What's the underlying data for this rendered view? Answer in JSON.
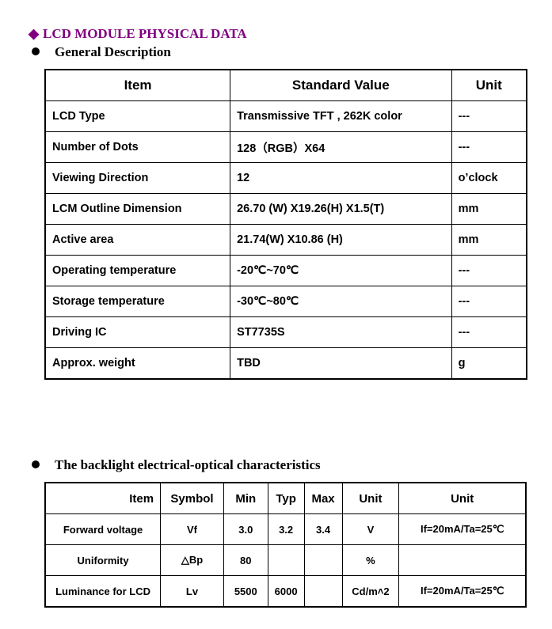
{
  "section_title": "LCD MODULE PHYSICAL DATA",
  "general": {
    "heading": "General Description",
    "headers": [
      "Item",
      "Standard Value",
      "Unit"
    ],
    "rows": [
      [
        "LCD Type",
        "Transmissive TFT , 262K color",
        "---"
      ],
      [
        "Number of Dots",
        "128（RGB）X64",
        "---"
      ],
      [
        "Viewing Direction",
        "12",
        "o’clock"
      ],
      [
        "LCM Outline Dimension",
        "26.70 (W) X19.26(H) X1.5(T)",
        "mm"
      ],
      [
        "Active area",
        "21.74(W) X10.86 (H)",
        "mm"
      ],
      [
        "Operating temperature",
        "-20℃~70℃",
        "---"
      ],
      [
        "Storage temperature",
        "-30℃~80℃",
        "---"
      ],
      [
        "Driving IC",
        "ST7735S",
        "---"
      ],
      [
        "Approx. weight",
        "TBD",
        "g"
      ]
    ]
  },
  "backlight": {
    "heading": "The backlight electrical-optical characteristics",
    "headers": [
      "Item",
      "Symbol",
      "Min",
      "Typ",
      "Max",
      "Unit",
      "Unit"
    ],
    "rows": [
      [
        "Forward voltage",
        "Vf",
        "3.0",
        "3.2",
        "3.4",
        "V",
        "If=20mA/Ta=25℃"
      ],
      [
        "Uniformity",
        "△Bp",
        "80",
        "",
        "",
        "%",
        ""
      ],
      [
        "Luminance for LCD",
        "Lv",
        "5500",
        "6000",
        "",
        "Cd/m˄2",
        "If=20mA/Ta=25℃"
      ]
    ]
  },
  "colors": {
    "title": "#800080"
  }
}
